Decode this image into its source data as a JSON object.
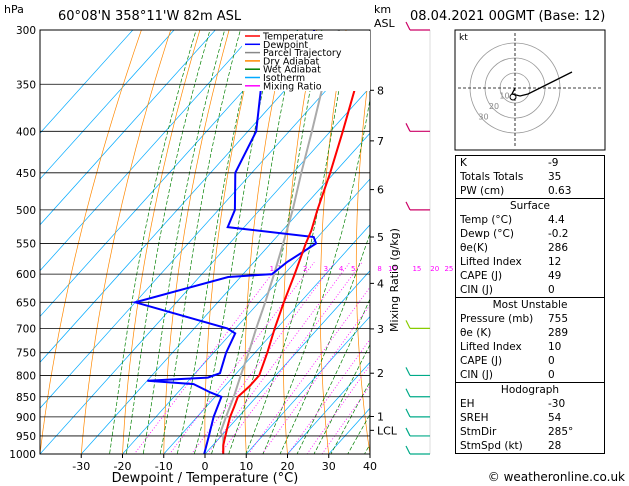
{
  "header": {
    "location": "60°08'N  358°11'W  82m  ASL",
    "date": "08.04.2021  00GMT  (Base: 12)",
    "p_unit": "hPa",
    "km_unit": "km",
    "asl_unit": "ASL"
  },
  "legend": [
    {
      "label": "Temperature",
      "color": "#ff0000"
    },
    {
      "label": "Dewpoint",
      "color": "#0000ff"
    },
    {
      "label": "Parcel Trajectory",
      "color": "#888888"
    },
    {
      "label": "Dry Adiabat",
      "color": "#ff8800"
    },
    {
      "label": "Wet Adiabat",
      "color": "#008000"
    },
    {
      "label": "Isotherm",
      "color": "#00aaff"
    },
    {
      "label": "Mixing Ratio",
      "color": "#ff00ff"
    }
  ],
  "axes": {
    "xlabel": "Dewpoint / Temperature (°C)",
    "right_label": "Mixing Ratio (g/kg)",
    "x_ticks": [
      "-30",
      "-20",
      "-10",
      "0",
      "10",
      "20",
      "30",
      "40"
    ],
    "p_ticks": [
      "300",
      "350",
      "400",
      "450",
      "500",
      "550",
      "600",
      "650",
      "700",
      "750",
      "800",
      "850",
      "900",
      "950",
      "1000"
    ],
    "km_ticks": [
      "8",
      "7",
      "6",
      "5",
      "4",
      "3",
      "2",
      "1",
      "LCL"
    ],
    "mixing_ratio_ticks": [
      "1",
      "2",
      "3",
      "4",
      "5",
      "8",
      "10",
      "15",
      "20",
      "25"
    ]
  },
  "chart_data": {
    "type": "skew-t",
    "xlim": [
      -40,
      40
    ],
    "ylim_hpa": [
      1000,
      300
    ],
    "temperature": [
      {
        "p": 1000,
        "t": 4.4
      },
      {
        "p": 975,
        "t": 2.5
      },
      {
        "p": 950,
        "t": 1
      },
      {
        "p": 925,
        "t": -0.5
      },
      {
        "p": 900,
        "t": -2
      },
      {
        "p": 875,
        "t": -3.2
      },
      {
        "p": 850,
        "t": -4.5
      },
      {
        "p": 825,
        "t": -4
      },
      {
        "p": 800,
        "t": -4
      },
      {
        "p": 750,
        "t": -7
      },
      {
        "p": 700,
        "t": -10.5
      },
      {
        "p": 650,
        "t": -14
      },
      {
        "p": 600,
        "t": -17.5
      },
      {
        "p": 550,
        "t": -21.5
      },
      {
        "p": 530,
        "t": -23
      },
      {
        "p": 500,
        "t": -26
      },
      {
        "p": 450,
        "t": -31
      },
      {
        "p": 400,
        "t": -37
      },
      {
        "p": 350,
        "t": -44
      },
      {
        "p": 300,
        "t": -51
      }
    ],
    "dewpoint": [
      {
        "p": 1000,
        "t": -0.2
      },
      {
        "p": 950,
        "t": -3
      },
      {
        "p": 900,
        "t": -6
      },
      {
        "p": 850,
        "t": -8.5
      },
      {
        "p": 840,
        "t": -12
      },
      {
        "p": 820,
        "t": -18
      },
      {
        "p": 812,
        "t": -30
      },
      {
        "p": 805,
        "t": -16
      },
      {
        "p": 795,
        "t": -14
      },
      {
        "p": 750,
        "t": -17
      },
      {
        "p": 710,
        "t": -19
      },
      {
        "p": 700,
        "t": -22
      },
      {
        "p": 650,
        "t": -50
      },
      {
        "p": 605,
        "t": -33
      },
      {
        "p": 600,
        "t": -23
      },
      {
        "p": 580,
        "t": -22
      },
      {
        "p": 550,
        "t": -19
      },
      {
        "p": 540,
        "t": -21
      },
      {
        "p": 525,
        "t": -44
      },
      {
        "p": 500,
        "t": -46
      },
      {
        "p": 450,
        "t": -54
      },
      {
        "p": 400,
        "t": -58
      },
      {
        "p": 350,
        "t": -67
      },
      {
        "p": 330,
        "t": -62
      },
      {
        "p": 300,
        "t": -66
      }
    ],
    "parcel": [
      {
        "p": 1000,
        "t": 4.4
      },
      {
        "p": 950,
        "t": 0.5
      },
      {
        "p": 940,
        "t": -1
      },
      {
        "p": 900,
        "t": -3
      },
      {
        "p": 850,
        "t": -5.5
      },
      {
        "p": 800,
        "t": -8.5
      },
      {
        "p": 750,
        "t": -11.5
      },
      {
        "p": 700,
        "t": -15
      },
      {
        "p": 650,
        "t": -18.5
      },
      {
        "p": 600,
        "t": -22.5
      },
      {
        "p": 550,
        "t": -27
      },
      {
        "p": 500,
        "t": -32
      },
      {
        "p": 450,
        "t": -38
      },
      {
        "p": 400,
        "t": -44.5
      },
      {
        "p": 350,
        "t": -52
      },
      {
        "p": 300,
        "t": -60
      }
    ],
    "wind_levels_hpa": [
      300,
      400,
      500,
      700,
      800,
      850,
      900,
      950,
      1000
    ]
  },
  "hodograph": {
    "label": "kt",
    "ring_labels": [
      "10",
      "20",
      "30"
    ]
  },
  "indices": {
    "basic": [
      {
        "k": "K",
        "v": "-9"
      },
      {
        "k": "Totals Totals",
        "v": "35"
      },
      {
        "k": "PW (cm)",
        "v": "0.63"
      }
    ],
    "surface_title": "Surface",
    "surface": [
      {
        "k": "Temp (°C)",
        "v": "4.4"
      },
      {
        "k": "Dewp (°C)",
        "v": "-0.2"
      },
      {
        "k": "θe(K)",
        "v": "286"
      },
      {
        "k": "Lifted Index",
        "v": "12"
      },
      {
        "k": "CAPE (J)",
        "v": "49"
      },
      {
        "k": "CIN (J)",
        "v": "0"
      }
    ],
    "unstable_title": "Most Unstable",
    "unstable": [
      {
        "k": "Pressure (mb)",
        "v": "755"
      },
      {
        "k": "θe (K)",
        "v": "289"
      },
      {
        "k": "Lifted Index",
        "v": "10"
      },
      {
        "k": "CAPE (J)",
        "v": "0"
      },
      {
        "k": "CIN (J)",
        "v": "0"
      }
    ],
    "hodo_title": "Hodograph",
    "hodo": [
      {
        "k": "EH",
        "v": "-30"
      },
      {
        "k": "SREH",
        "v": "54"
      },
      {
        "k": "StmDir",
        "v": "285°"
      },
      {
        "k": "StmSpd (kt)",
        "v": "28"
      }
    ]
  },
  "footer": {
    "credit": "© weatheronline.co.uk"
  }
}
